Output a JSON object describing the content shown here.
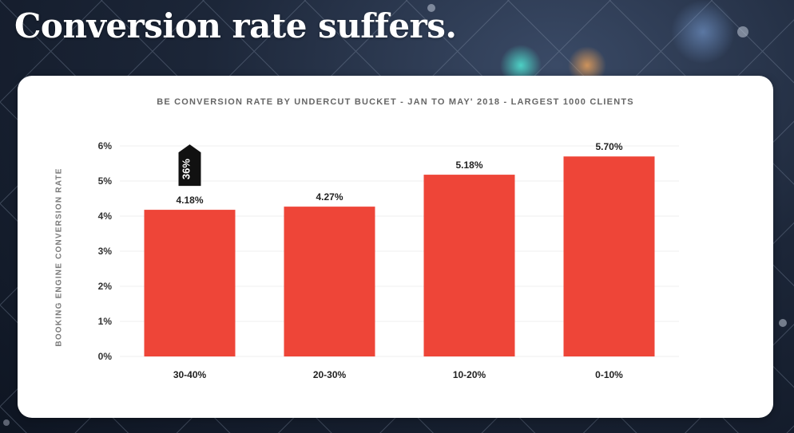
{
  "slide": {
    "title": "Conversion rate suffers."
  },
  "chart_data": {
    "type": "bar",
    "title": "BE CONVERSION RATE BY UNDERCUT BUCKET - JAN TO MAY' 2018 - LARGEST 1000 CLIENTS",
    "xlabel": "",
    "ylabel": "BOOKING ENGINE CONVERSION RATE",
    "categories": [
      "30-40%",
      "20-30%",
      "10-20%",
      "0-10%"
    ],
    "values": [
      4.18,
      4.27,
      5.18,
      5.7
    ],
    "data_labels": [
      "4.18%",
      "4.27%",
      "5.18%",
      "5.70%"
    ],
    "ylim": [
      0,
      6
    ],
    "yticks": [
      0,
      1,
      2,
      3,
      4,
      5,
      6
    ],
    "ytick_labels": [
      "0%",
      "1%",
      "2%",
      "3%",
      "4%",
      "5%",
      "6%"
    ],
    "grid": true,
    "bar_color": "#ee4538",
    "annotation": {
      "text": "36%",
      "category_index": 0
    }
  }
}
